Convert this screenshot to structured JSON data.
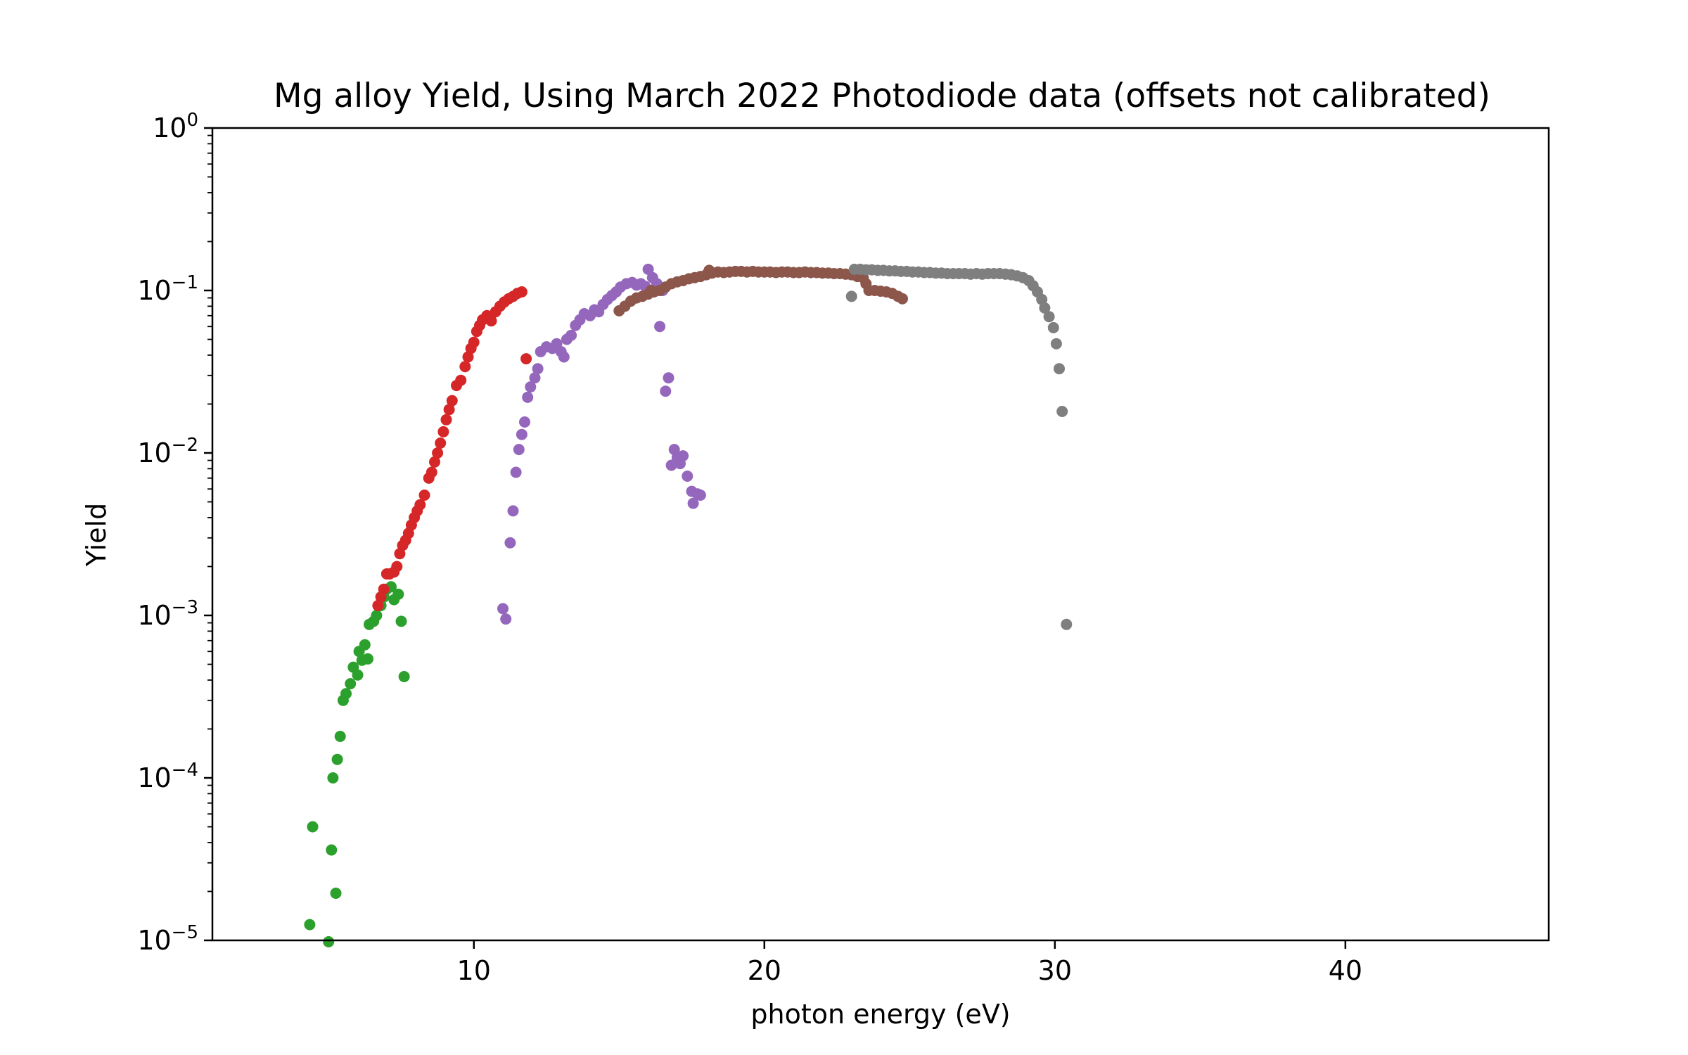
{
  "chart_data": {
    "type": "scatter",
    "title": "Mg alloy Yield, Using March 2022 Photodiode data  (offsets not calibrated)",
    "xlabel": "photon energy (eV)",
    "ylabel": "Yield",
    "xlim": [
      1,
      47
    ],
    "ylim": [
      1e-05,
      1
    ],
    "y_scale": "log",
    "grid": false,
    "x_ticks": [
      {
        "value": 10,
        "label": "10"
      },
      {
        "value": 20,
        "label": "20"
      },
      {
        "value": 30,
        "label": "30"
      },
      {
        "value": 40,
        "label": "40"
      }
    ],
    "y_ticks": [
      {
        "value": 1,
        "base": "10",
        "exp": "0"
      },
      {
        "value": 0.1,
        "base": "10",
        "exp": "−1"
      },
      {
        "value": 0.01,
        "base": "10",
        "exp": "−2"
      },
      {
        "value": 0.001,
        "base": "10",
        "exp": "−3"
      },
      {
        "value": 0.0001,
        "base": "10",
        "exp": "−4"
      },
      {
        "value": 1e-05,
        "base": "10",
        "exp": "−5"
      }
    ],
    "series": [
      {
        "color": "#2ca02c",
        "points": [
          [
            4.35,
            1.25e-05
          ],
          [
            4.45,
            5e-05
          ],
          [
            5.0,
            9.8e-06
          ],
          [
            5.1,
            3.6e-05
          ],
          [
            5.15,
            0.0001
          ],
          [
            5.25,
            1.95e-05
          ],
          [
            5.3,
            0.00013
          ],
          [
            5.4,
            0.00018
          ],
          [
            5.5,
            0.0003
          ],
          [
            5.6,
            0.00033
          ],
          [
            5.75,
            0.00038
          ],
          [
            5.85,
            0.00048
          ],
          [
            6.0,
            0.00043
          ],
          [
            6.05,
            0.0006
          ],
          [
            6.15,
            0.00053
          ],
          [
            6.25,
            0.00066
          ],
          [
            6.35,
            0.00054
          ],
          [
            6.4,
            0.00088
          ],
          [
            6.55,
            0.00092
          ],
          [
            6.65,
            0.001
          ],
          [
            6.8,
            0.00115
          ],
          [
            6.9,
            0.0013
          ],
          [
            7.0,
            0.00145
          ],
          [
            7.15,
            0.0015
          ],
          [
            7.25,
            0.00125
          ],
          [
            7.4,
            0.00135
          ],
          [
            7.5,
            0.00092
          ],
          [
            7.6,
            0.00042
          ]
        ]
      },
      {
        "color": "#d62728",
        "points": [
          [
            6.7,
            0.00115
          ],
          [
            6.8,
            0.0013
          ],
          [
            6.9,
            0.00145
          ],
          [
            7.0,
            0.0018
          ],
          [
            7.1,
            0.0018
          ],
          [
            7.25,
            0.00185
          ],
          [
            7.35,
            0.002
          ],
          [
            7.45,
            0.0024
          ],
          [
            7.55,
            0.0027
          ],
          [
            7.65,
            0.0029
          ],
          [
            7.75,
            0.0032
          ],
          [
            7.85,
            0.0036
          ],
          [
            7.95,
            0.004
          ],
          [
            8.05,
            0.0044
          ],
          [
            8.15,
            0.0048
          ],
          [
            8.3,
            0.0055
          ],
          [
            8.45,
            0.007
          ],
          [
            8.55,
            0.0076
          ],
          [
            8.65,
            0.0088
          ],
          [
            8.75,
            0.01
          ],
          [
            8.85,
            0.0115
          ],
          [
            8.95,
            0.0135
          ],
          [
            9.05,
            0.016
          ],
          [
            9.15,
            0.0185
          ],
          [
            9.25,
            0.021
          ],
          [
            9.4,
            0.026
          ],
          [
            9.55,
            0.028
          ],
          [
            9.7,
            0.034
          ],
          [
            9.8,
            0.039
          ],
          [
            9.9,
            0.044
          ],
          [
            10.0,
            0.048
          ],
          [
            10.1,
            0.056
          ],
          [
            10.2,
            0.061
          ],
          [
            10.3,
            0.066
          ],
          [
            10.45,
            0.07
          ],
          [
            10.6,
            0.065
          ],
          [
            10.75,
            0.074
          ],
          [
            10.9,
            0.08
          ],
          [
            11.05,
            0.085
          ],
          [
            11.2,
            0.089
          ],
          [
            11.35,
            0.092
          ],
          [
            11.5,
            0.096
          ],
          [
            11.65,
            0.098
          ],
          [
            11.8,
            0.038
          ]
        ]
      },
      {
        "color": "#9467bd",
        "points": [
          [
            11.0,
            0.0011
          ],
          [
            11.1,
            0.00095
          ],
          [
            11.25,
            0.0028
          ],
          [
            11.35,
            0.0044
          ],
          [
            11.45,
            0.0076
          ],
          [
            11.55,
            0.0105
          ],
          [
            11.65,
            0.013
          ],
          [
            11.75,
            0.0155
          ],
          [
            11.85,
            0.022
          ],
          [
            11.95,
            0.0255
          ],
          [
            12.1,
            0.029
          ],
          [
            12.2,
            0.033
          ],
          [
            12.3,
            0.042
          ],
          [
            12.5,
            0.045
          ],
          [
            12.7,
            0.044
          ],
          [
            12.85,
            0.047
          ],
          [
            13.0,
            0.042
          ],
          [
            13.1,
            0.039
          ],
          [
            13.2,
            0.05
          ],
          [
            13.35,
            0.053
          ],
          [
            13.5,
            0.061
          ],
          [
            13.65,
            0.066
          ],
          [
            13.8,
            0.072
          ],
          [
            14.0,
            0.07
          ],
          [
            14.15,
            0.076
          ],
          [
            14.3,
            0.074
          ],
          [
            14.45,
            0.082
          ],
          [
            14.6,
            0.088
          ],
          [
            14.75,
            0.093
          ],
          [
            14.9,
            0.098
          ],
          [
            15.05,
            0.105
          ],
          [
            15.25,
            0.11
          ],
          [
            15.45,
            0.112
          ],
          [
            15.6,
            0.108
          ],
          [
            15.75,
            0.11
          ],
          [
            15.9,
            0.106
          ],
          [
            16.0,
            0.135
          ],
          [
            16.15,
            0.12
          ],
          [
            16.3,
            0.11
          ],
          [
            16.4,
            0.06
          ],
          [
            16.5,
            0.1
          ],
          [
            16.6,
            0.024
          ],
          [
            16.7,
            0.029
          ],
          [
            16.8,
            0.0084
          ],
          [
            16.9,
            0.0105
          ],
          [
            17.0,
            0.0094
          ],
          [
            17.1,
            0.0086
          ],
          [
            17.2,
            0.0096
          ],
          [
            17.35,
            0.0072
          ],
          [
            17.5,
            0.0058
          ],
          [
            17.55,
            0.0049
          ],
          [
            17.7,
            0.0056
          ],
          [
            17.8,
            0.0055
          ]
        ]
      },
      {
        "color": "#8c564b",
        "points": [
          [
            15.0,
            0.075
          ],
          [
            15.2,
            0.08
          ],
          [
            15.4,
            0.086
          ],
          [
            15.6,
            0.09
          ],
          [
            15.8,
            0.092
          ],
          [
            16.0,
            0.095
          ],
          [
            16.2,
            0.098
          ],
          [
            16.4,
            0.1
          ],
          [
            16.6,
            0.105
          ],
          [
            16.8,
            0.11
          ],
          [
            17.0,
            0.113
          ],
          [
            17.2,
            0.115
          ],
          [
            17.4,
            0.118
          ],
          [
            17.6,
            0.12
          ],
          [
            17.8,
            0.122
          ],
          [
            18.0,
            0.125
          ],
          [
            18.2,
            0.128
          ],
          [
            18.4,
            0.13
          ],
          [
            18.6,
            0.129
          ],
          [
            18.8,
            0.13
          ],
          [
            19.0,
            0.131
          ],
          [
            19.2,
            0.131
          ],
          [
            19.4,
            0.13
          ],
          [
            19.6,
            0.131
          ],
          [
            19.8,
            0.13
          ],
          [
            20.0,
            0.13
          ],
          [
            20.2,
            0.13
          ],
          [
            20.4,
            0.129
          ],
          [
            20.6,
            0.13
          ],
          [
            20.8,
            0.13
          ],
          [
            21.0,
            0.129
          ],
          [
            21.2,
            0.129
          ],
          [
            21.4,
            0.13
          ],
          [
            21.6,
            0.129
          ],
          [
            21.8,
            0.129
          ],
          [
            22.0,
            0.128
          ],
          [
            22.2,
            0.128
          ],
          [
            22.4,
            0.127
          ],
          [
            22.6,
            0.127
          ],
          [
            22.8,
            0.126
          ],
          [
            23.0,
            0.125
          ],
          [
            23.2,
            0.122
          ],
          [
            23.4,
            0.12
          ],
          [
            23.5,
            0.11
          ],
          [
            23.6,
            0.1
          ],
          [
            23.8,
            0.1
          ],
          [
            24.0,
            0.099
          ],
          [
            24.2,
            0.098
          ],
          [
            24.4,
            0.096
          ],
          [
            24.6,
            0.092
          ],
          [
            24.75,
            0.089
          ],
          [
            16.1,
            0.1
          ],
          [
            18.1,
            0.133
          ]
        ]
      },
      {
        "color": "#7f7f7f",
        "points": [
          [
            23.0,
            0.092
          ],
          [
            23.1,
            0.135
          ],
          [
            23.3,
            0.135
          ],
          [
            23.5,
            0.134
          ],
          [
            23.7,
            0.134
          ],
          [
            23.9,
            0.133
          ],
          [
            24.1,
            0.133
          ],
          [
            24.3,
            0.132
          ],
          [
            24.5,
            0.132
          ],
          [
            24.7,
            0.131
          ],
          [
            24.9,
            0.131
          ],
          [
            25.1,
            0.13
          ],
          [
            25.3,
            0.13
          ],
          [
            25.5,
            0.129
          ],
          [
            25.7,
            0.129
          ],
          [
            25.9,
            0.128
          ],
          [
            26.1,
            0.128
          ],
          [
            26.3,
            0.127
          ],
          [
            26.5,
            0.127
          ],
          [
            26.7,
            0.127
          ],
          [
            26.9,
            0.127
          ],
          [
            27.1,
            0.126
          ],
          [
            27.3,
            0.127
          ],
          [
            27.5,
            0.126
          ],
          [
            27.7,
            0.127
          ],
          [
            27.9,
            0.127
          ],
          [
            28.1,
            0.127
          ],
          [
            28.3,
            0.126
          ],
          [
            28.5,
            0.125
          ],
          [
            28.7,
            0.123
          ],
          [
            28.9,
            0.12
          ],
          [
            29.1,
            0.115
          ],
          [
            29.25,
            0.107
          ],
          [
            29.4,
            0.098
          ],
          [
            29.55,
            0.088
          ],
          [
            29.65,
            0.078
          ],
          [
            29.8,
            0.069
          ],
          [
            29.95,
            0.059
          ],
          [
            30.05,
            0.047
          ],
          [
            30.15,
            0.033
          ],
          [
            30.25,
            0.018
          ],
          [
            30.4,
            0.00088
          ]
        ]
      }
    ]
  }
}
